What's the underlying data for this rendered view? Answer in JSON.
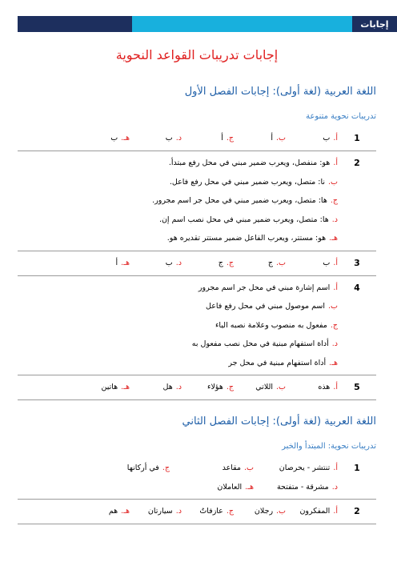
{
  "header": {
    "tag": "إجابات",
    "title": "إجابات تدريبات القواعد النحوية"
  },
  "sections": [
    {
      "heading": "اللغة العربية (لغة أولى): إجابات الفصل الأول",
      "subheading": "تدريبات نحوية متنوعة",
      "rows": [
        {
          "number": "1",
          "lines": [
            [
              {
                "letter": "أ.",
                "text": "ب"
              },
              {
                "letter": "ب.",
                "text": "أ"
              },
              {
                "letter": "ج.",
                "text": "أ"
              },
              {
                "letter": "د.",
                "text": "ب"
              },
              {
                "letter": "هـ.",
                "text": "ب"
              }
            ]
          ]
        },
        {
          "number": "2",
          "lines": [
            [
              {
                "letter": "أ.",
                "text": "هو: منفصل، ويعرب ضمير مبني في محل رفع مبتدأ."
              }
            ],
            [
              {
                "letter": "ب.",
                "text": "نا: متصل، ويعرب ضمير مبني في محل رفع فاعل."
              }
            ],
            [
              {
                "letter": "ج.",
                "text": "ها: متصل، ويعرب ضمير مبني في محل جر اسم مجرور."
              }
            ],
            [
              {
                "letter": "د.",
                "text": "ها: متصل، ويعرب ضمير مبني في محل نصب اسم إن."
              }
            ],
            [
              {
                "letter": "هـ.",
                "text": "هو: مستتر، ويعرب الفاعل ضمير مستتر تقديره هو."
              }
            ]
          ]
        },
        {
          "number": "3",
          "lines": [
            [
              {
                "letter": "أ.",
                "text": "ب"
              },
              {
                "letter": "ب.",
                "text": "ج"
              },
              {
                "letter": "ج.",
                "text": "ج"
              },
              {
                "letter": "د.",
                "text": "ب"
              },
              {
                "letter": "هـ.",
                "text": "أ"
              }
            ]
          ]
        },
        {
          "number": "4",
          "lines": [
            [
              {
                "letter": "أ.",
                "text": "اسم إشارة مبني في محل جر اسم مجرور"
              }
            ],
            [
              {
                "letter": "ب.",
                "text": "اسم موصول مبني في محل رفع فاعل"
              }
            ],
            [
              {
                "letter": "ج.",
                "text": "مفعول به منصوب وعلامة نصبه الياء"
              }
            ],
            [
              {
                "letter": "د.",
                "text": "أداة استفهام مبنية في محل نصب مفعول به"
              }
            ],
            [
              {
                "letter": "هـ.",
                "text": "أداة استفهام مبنية في محل جر"
              }
            ]
          ]
        },
        {
          "number": "5",
          "lines": [
            [
              {
                "letter": "أ.",
                "text": "هذه"
              },
              {
                "letter": "ب.",
                "text": "اللاتي"
              },
              {
                "letter": "ج.",
                "text": "هؤلاء"
              },
              {
                "letter": "د.",
                "text": "هل"
              },
              {
                "letter": "هـ.",
                "text": "هاتين"
              }
            ]
          ]
        }
      ]
    },
    {
      "heading": "اللغة العربية (لغة أولى): إجابات الفصل الثاني",
      "subheading": "تدريبات نحوية: المبتدأ والخبر",
      "rows": [
        {
          "number": "1",
          "lines": [
            [
              {
                "letter": "أ.",
                "text": "تنتشر - يحرصان"
              },
              {
                "letter": "ب.",
                "text": "مقاعد"
              },
              {
                "letter": "ج.",
                "text": "في أركانها"
              }
            ],
            [
              {
                "letter": "د.",
                "text": "مشرقة - متفتحة"
              },
              {
                "letter": "هـ.",
                "text": "العاملان"
              }
            ]
          ]
        },
        {
          "number": "2",
          "lines": [
            [
              {
                "letter": "أ.",
                "text": "المفكرون"
              },
              {
                "letter": "ب.",
                "text": "رجلان"
              },
              {
                "letter": "ج.",
                "text": "عازفاتٌ"
              },
              {
                "letter": "د.",
                "text": "سيارتان"
              },
              {
                "letter": "هـ.",
                "text": "هم"
              }
            ]
          ]
        }
      ]
    }
  ]
}
